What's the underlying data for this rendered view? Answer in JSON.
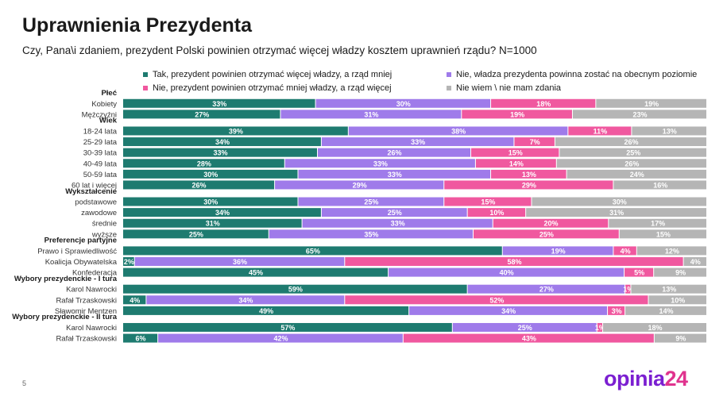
{
  "title": "Uprawnienia Prezydenta",
  "subtitle": "Czy, Pana\\i zdaniem, prezydent Polski powinien otrzymać więcej władzy kosztem uprawnień rządu? N=1000",
  "page_number": "5",
  "logo": {
    "word": "opinia",
    "number": "24"
  },
  "colors": {
    "teal": "#1e7b70",
    "purple": "#9f7bea",
    "pink": "#f0589f",
    "gray": "#b5b5b5"
  },
  "chart_data": {
    "type": "bar",
    "orientation": "horizontal",
    "stacked": true,
    "normalized": true,
    "title": "Uprawnienia Prezydenta",
    "xlim": [
      0,
      100
    ],
    "legend_position": "top",
    "series_names": [
      "Tak, prezydent powinien otrzymać więcej władzy, a rząd mniej",
      "Nie, władza prezydenta powinna zostać na obecnym poziomie",
      "Nie, prezydent powinien otrzymać mniej władzy, a rząd więcej",
      "Nie wiem \\ nie mam zdania"
    ],
    "groups": [
      {
        "name": "Płeć",
        "rows": [
          {
            "label": "Kobiety",
            "values": [
              33,
              30,
              18,
              19
            ]
          },
          {
            "label": "Mężczyźni",
            "values": [
              27,
              31,
              19,
              23
            ]
          }
        ]
      },
      {
        "name": "Wiek",
        "rows": [
          {
            "label": "18-24 lata",
            "values": [
              39,
              38,
              11,
              13
            ]
          },
          {
            "label": "25-29 lata",
            "values": [
              34,
              33,
              7,
              26
            ]
          },
          {
            "label": "30-39 lata",
            "values": [
              33,
              26,
              15,
              25
            ]
          },
          {
            "label": "40-49 lata",
            "values": [
              28,
              33,
              14,
              26
            ]
          },
          {
            "label": "50-59 lata",
            "values": [
              30,
              33,
              13,
              24
            ]
          },
          {
            "label": "60 lat i więcej",
            "values": [
              26,
              29,
              29,
              16
            ]
          }
        ]
      },
      {
        "name": "Wykształcenie",
        "rows": [
          {
            "label": "podstawowe",
            "values": [
              30,
              25,
              15,
              30
            ]
          },
          {
            "label": "zawodowe",
            "values": [
              34,
              25,
              10,
              31
            ]
          },
          {
            "label": "średnie",
            "values": [
              31,
              33,
              20,
              17
            ]
          },
          {
            "label": "wyższe",
            "values": [
              25,
              35,
              25,
              15
            ]
          }
        ]
      },
      {
        "name": "Preferencje partyjne",
        "rows": [
          {
            "label": "Prawo i Sprawiedliwość",
            "values": [
              65,
              19,
              4,
              12
            ]
          },
          {
            "label": "Koalicja Obywatelska",
            "values": [
              2,
              36,
              58,
              4
            ]
          },
          {
            "label": "Konfederacja",
            "values": [
              45,
              40,
              5,
              9
            ]
          }
        ]
      },
      {
        "name": "Wybory prezydenckie - I tura",
        "rows": [
          {
            "label": "Karol Nawrocki",
            "values": [
              59,
              27,
              1,
              13
            ]
          },
          {
            "label": "Rafał Trzaskowski",
            "values": [
              4,
              34,
              52,
              10
            ]
          },
          {
            "label": "Sławomir Mentzen",
            "values": [
              49,
              34,
              3,
              14
            ]
          }
        ]
      },
      {
        "name": "Wybory prezydenckie - II tura",
        "rows": [
          {
            "label": "Karol Nawrocki",
            "values": [
              57,
              25,
              1,
              18
            ]
          },
          {
            "label": "Rafał Trzaskowski",
            "values": [
              6,
              42,
              43,
              9
            ]
          }
        ]
      }
    ]
  }
}
